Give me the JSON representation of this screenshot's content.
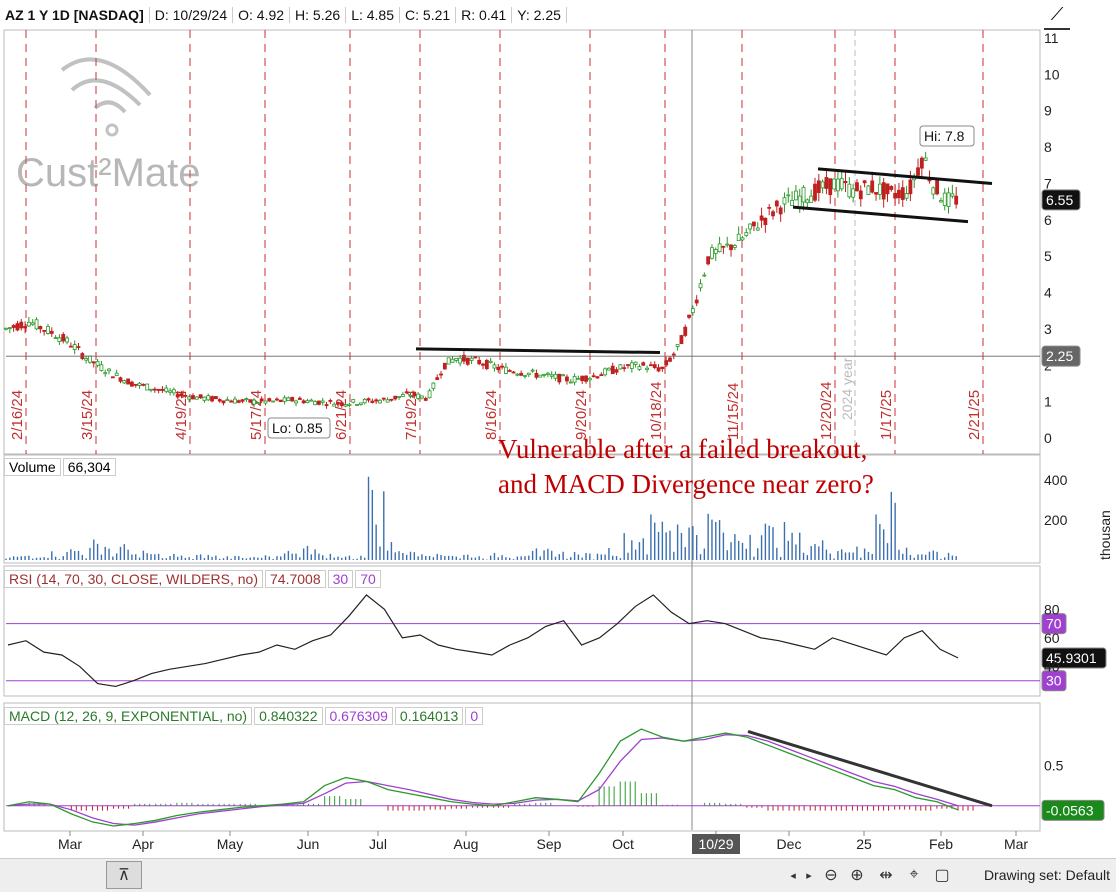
{
  "header": {
    "symbol": "AZ 1 Y 1D [NASDAQ]",
    "date": "D: 10/29/24",
    "open": "O: 4.92",
    "high": "H: 5.26",
    "low": "L: 4.85",
    "close": "C: 5.21",
    "range": "R: 0.41",
    "yday": "Y: 2.25"
  },
  "watermark": {
    "brand": "Cust²Mate"
  },
  "annotation": [
    "Vulnerable after a failed breakout,",
    "and MACD Divergence near zero?"
  ],
  "price_labels": {
    "hi": "Hi: 7.8",
    "lo": "Lo: 0.85",
    "last": "6.55",
    "prior": "2.25",
    "year": "2024 year"
  },
  "volume_legend": {
    "name": "Volume",
    "value": "66,304",
    "unit": "thousan"
  },
  "rsi_legend": {
    "name": "RSI (14, 70, 30, CLOSE, WILDERS, no)",
    "value": "74.7008",
    "ob": "30",
    "os": "70",
    "last": "45.9301",
    "tag70": "70",
    "tag30": "30"
  },
  "macd_legend": {
    "name": "MACD (12, 26, 9, EXPONENTIAL, no)",
    "v1": "0.840322",
    "v2": "0.676309",
    "v3": "0.164013",
    "v4": "0",
    "last": "-0.0563"
  },
  "x_cursor_label": "10/29",
  "drawing_set": "Drawing set: Default",
  "colors": {
    "bull": "#2a9a2a",
    "bear": "#c02020",
    "macd": "#2a9a2a",
    "signal": "#a040d0",
    "rsi": "#222222",
    "cycle": "#cc3030",
    "volume": "#3a6fb0"
  },
  "chart_data": [
    {
      "type": "candlestick",
      "title": "AZ 1 Y 1D [NASDAQ]",
      "ylim": [
        0,
        11
      ],
      "yticks": [
        0,
        1,
        2,
        3,
        4,
        5,
        6,
        7,
        8,
        9,
        10,
        11
      ],
      "x_months": [
        "Mar",
        "Apr",
        "May",
        "Jun",
        "Jul",
        "Aug",
        "Sep",
        "Oct",
        "10/29",
        "Dec",
        "25",
        "Feb",
        "Mar"
      ],
      "cycle_dates": [
        "2/16/24",
        "3/15/24",
        "4/19/24",
        "5/17/24",
        "6/21/24",
        "7/19/24",
        "8/16/24",
        "9/20/24",
        "10/18/24",
        "11/15/24",
        "12/20/24",
        "1/17/25",
        "2/21/25"
      ],
      "close_path": [
        [
          0,
          3.0
        ],
        [
          10,
          3.2
        ],
        [
          20,
          2.9
        ],
        [
          28,
          2.6
        ],
        [
          35,
          2.2
        ],
        [
          45,
          1.8
        ],
        [
          55,
          1.5
        ],
        [
          65,
          1.35
        ],
        [
          75,
          1.2
        ],
        [
          85,
          1.1
        ],
        [
          95,
          1.05
        ],
        [
          105,
          1.0
        ],
        [
          115,
          1.0
        ],
        [
          125,
          1.05
        ],
        [
          135,
          1.0
        ],
        [
          145,
          0.95
        ],
        [
          155,
          1.0
        ],
        [
          165,
          1.05
        ],
        [
          175,
          1.2
        ],
        [
          183,
          1.1
        ],
        [
          190,
          2.0
        ],
        [
          195,
          2.2
        ],
        [
          205,
          2.1
        ],
        [
          215,
          1.9
        ],
        [
          225,
          1.8
        ],
        [
          235,
          1.7
        ],
        [
          245,
          1.6
        ],
        [
          255,
          1.7
        ],
        [
          265,
          1.9
        ],
        [
          275,
          2.0
        ],
        [
          285,
          1.9
        ],
        [
          292,
          2.5
        ],
        [
          298,
          3.5
        ],
        [
          305,
          5.0
        ],
        [
          312,
          5.2
        ],
        [
          320,
          5.5
        ],
        [
          328,
          6.0
        ],
        [
          336,
          6.4
        ],
        [
          344,
          6.6
        ],
        [
          352,
          6.8
        ],
        [
          360,
          7.0
        ],
        [
          368,
          6.8
        ],
        [
          376,
          6.9
        ],
        [
          384,
          6.7
        ],
        [
          392,
          6.8
        ],
        [
          398,
          7.8
        ],
        [
          402,
          7.0
        ],
        [
          408,
          6.5
        ],
        [
          414,
          6.6
        ]
      ],
      "annotations": {
        "hi": 7.8,
        "lo": 0.85,
        "last": 6.55,
        "prior_level": 2.25
      }
    },
    {
      "type": "bar",
      "title": "Volume",
      "ylim": [
        0,
        450
      ],
      "yticks": [
        200,
        400
      ],
      "values_profile": [
        20,
        30,
        40,
        60,
        90,
        70,
        40,
        30,
        20,
        25,
        20,
        30,
        20,
        40,
        60,
        30,
        20,
        420,
        80,
        60,
        40,
        30,
        20,
        30,
        40,
        50,
        40,
        30,
        60,
        120,
        200,
        240,
        180,
        220,
        140,
        180,
        160,
        120,
        90,
        70,
        60,
        380,
        60,
        40,
        30
      ]
    },
    {
      "type": "line",
      "title": "RSI (14, 70, 30, CLOSE, WILDERS, no)",
      "ylim": [
        20,
        90
      ],
      "yticks": [
        40,
        60,
        80
      ],
      "levels": [
        70,
        30
      ],
      "values": [
        55,
        58,
        50,
        48,
        40,
        28,
        26,
        30,
        35,
        38,
        40,
        42,
        45,
        48,
        50,
        55,
        52,
        58,
        62,
        75,
        90,
        80,
        60,
        62,
        55,
        52,
        50,
        48,
        55,
        60,
        68,
        72,
        55,
        60,
        70,
        82,
        90,
        78,
        70,
        72,
        70,
        65,
        60,
        58,
        55,
        52,
        60,
        56,
        52,
        48,
        60,
        65,
        52,
        46
      ]
    },
    {
      "type": "line",
      "title": "MACD (12, 26, 9, EXPONENTIAL, no)",
      "ylim": [
        -0.3,
        1.0
      ],
      "yticks": [
        0.5
      ],
      "macd": [
        0,
        0.05,
        0.02,
        -0.1,
        -0.2,
        -0.25,
        -0.22,
        -0.18,
        -0.12,
        -0.08,
        -0.05,
        -0.02,
        0,
        0.02,
        0.05,
        0.25,
        0.35,
        0.3,
        0.2,
        0.15,
        0.1,
        0.05,
        0.02,
        0.0,
        0.05,
        0.1,
        0.08,
        0.05,
        0.4,
        0.8,
        0.95,
        0.85,
        0.8,
        0.85,
        0.9,
        0.85,
        0.75,
        0.65,
        0.55,
        0.45,
        0.35,
        0.25,
        0.2,
        0.1,
        0.05,
        -0.05
      ],
      "signal": [
        0,
        0.02,
        0.02,
        -0.05,
        -0.15,
        -0.22,
        -0.24,
        -0.2,
        -0.15,
        -0.1,
        -0.07,
        -0.04,
        -0.01,
        0.01,
        0.03,
        0.15,
        0.28,
        0.3,
        0.25,
        0.2,
        0.14,
        0.08,
        0.04,
        0.02,
        0.03,
        0.07,
        0.08,
        0.06,
        0.2,
        0.55,
        0.82,
        0.84,
        0.8,
        0.82,
        0.88,
        0.87,
        0.8,
        0.7,
        0.6,
        0.5,
        0.4,
        0.3,
        0.24,
        0.15,
        0.08,
        0.0
      ]
    }
  ]
}
